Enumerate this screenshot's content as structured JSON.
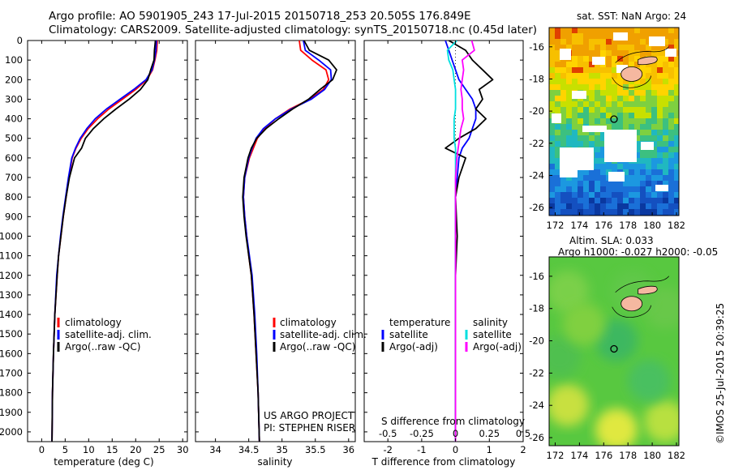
{
  "header": {
    "line1": "Argo profile: AO 5901905_243 17-Jul-2015 20150718_253 20.505S 176.849E",
    "line2": "Climatology: CARS2009. Satellite-adjusted climatology: synTS_20150718.nc (0.45d later)"
  },
  "depth_ticks": [
    "0",
    "100",
    "200",
    "300",
    "400",
    "500",
    "600",
    "700",
    "800",
    "900",
    "1000",
    "1100",
    "1200",
    "1300",
    "1400",
    "1500",
    "1600",
    "1700",
    "1800",
    "1900",
    "2000"
  ],
  "colors": {
    "climatology": "#ff0000",
    "satellite": "#0000ff",
    "argo": "#000000",
    "sat_salinity": "#00e0e0",
    "argo_salinity": "#ff00ff",
    "land": "#f5b8a0"
  },
  "chart_data": [
    {
      "type": "line",
      "xlabel": "temperature (deg C)",
      "xticks": [
        "0",
        "5",
        "10",
        "15",
        "20",
        "25",
        "30"
      ],
      "xlim": [
        -3,
        31
      ],
      "ylim": [
        2050,
        0
      ],
      "legend": {
        "placement": "lower-center",
        "entries": [
          "climatology",
          "satellite-adj. clim.",
          "Argo(..raw -QC)"
        ]
      },
      "series": [
        {
          "name": "climatology",
          "color": "#ff0000",
          "x": [
            24.6,
            24.5,
            24.1,
            23.6,
            22.4,
            20.0,
            17.2,
            14.3,
            11.9,
            9.9,
            8.4,
            7.3,
            6.5,
            5.8,
            5.2,
            4.6,
            4.1,
            3.6,
            3.3,
            2.8,
            2.5,
            2.3,
            2.2
          ],
          "y": [
            0,
            50,
            100,
            150,
            200,
            250,
            300,
            350,
            400,
            450,
            500,
            550,
            600,
            700,
            800,
            900,
            1000,
            1100,
            1200,
            1400,
            1600,
            1800,
            2050
          ]
        },
        {
          "name": "satellite-adj. clim.",
          "color": "#0000ff",
          "x": [
            24.4,
            24.3,
            24.0,
            23.5,
            22.2,
            19.6,
            16.7,
            13.8,
            11.4,
            9.6,
            8.2,
            7.2,
            6.4,
            5.7,
            5.1,
            4.5,
            4.0,
            3.6,
            3.2,
            2.8,
            2.5,
            2.3,
            2.2
          ],
          "y": [
            0,
            50,
            100,
            150,
            200,
            250,
            300,
            350,
            400,
            450,
            500,
            550,
            600,
            700,
            800,
            900,
            1000,
            1100,
            1200,
            1400,
            1600,
            1800,
            2050
          ]
        },
        {
          "name": "Argo(..raw -QC)",
          "color": "#000000",
          "x": [
            24.2,
            24.0,
            23.9,
            23.2,
            22.6,
            21.0,
            18.6,
            15.8,
            13.2,
            11.0,
            9.3,
            8.5,
            7.0,
            5.9,
            5.2,
            4.6,
            4.1,
            3.6,
            3.3,
            2.8,
            2.5,
            2.3,
            2.2
          ],
          "y": [
            0,
            50,
            100,
            150,
            200,
            250,
            300,
            350,
            400,
            450,
            500,
            550,
            600,
            700,
            800,
            900,
            1000,
            1100,
            1200,
            1400,
            1600,
            1800,
            2050
          ]
        }
      ]
    },
    {
      "type": "line",
      "xlabel": "salinity",
      "xticks": [
        "34",
        "34.5",
        "35",
        "35.5",
        "36"
      ],
      "xlim": [
        33.7,
        36.1
      ],
      "ylim": [
        2050,
        0
      ],
      "legend": {
        "placement": "lower-center",
        "entries": [
          "climatology",
          "satellite-adj. clim.",
          "Argo(..raw -QC)"
        ]
      },
      "annotations": [
        "US ARGO PROJECT",
        "PI: STEPHEN RISER"
      ],
      "series": [
        {
          "name": "climatology",
          "color": "#ff0000",
          "x": [
            35.26,
            35.28,
            35.45,
            35.66,
            35.7,
            35.62,
            35.42,
            35.12,
            34.9,
            34.74,
            34.63,
            34.57,
            34.51,
            34.44,
            34.42,
            34.44,
            34.47,
            34.5,
            34.54,
            34.58,
            34.61,
            34.64,
            34.66
          ],
          "y": [
            0,
            50,
            100,
            150,
            200,
            250,
            300,
            350,
            400,
            450,
            500,
            550,
            600,
            700,
            800,
            900,
            1000,
            1100,
            1200,
            1400,
            1600,
            1800,
            2050
          ]
        },
        {
          "name": "satellite-adj. clim.",
          "color": "#0000ff",
          "x": [
            35.32,
            35.35,
            35.55,
            35.73,
            35.74,
            35.64,
            35.44,
            35.14,
            34.9,
            34.72,
            34.61,
            34.55,
            34.5,
            34.44,
            34.42,
            34.44,
            34.47,
            34.51,
            34.55,
            34.59,
            34.62,
            34.64,
            34.66
          ],
          "y": [
            0,
            50,
            100,
            150,
            200,
            250,
            300,
            350,
            400,
            450,
            500,
            550,
            600,
            700,
            800,
            900,
            1000,
            1100,
            1200,
            1400,
            1600,
            1800,
            2050
          ]
        },
        {
          "name": "Argo(..raw -QC)",
          "color": "#000000",
          "x": [
            35.33,
            35.41,
            35.7,
            35.82,
            35.76,
            35.57,
            35.4,
            35.16,
            34.95,
            34.76,
            34.62,
            34.54,
            34.49,
            34.43,
            34.41,
            34.43,
            34.46,
            34.5,
            34.54,
            34.58,
            34.61,
            34.64,
            34.66
          ],
          "y": [
            0,
            50,
            100,
            150,
            200,
            250,
            300,
            350,
            400,
            450,
            500,
            550,
            600,
            700,
            800,
            900,
            1000,
            1100,
            1200,
            1400,
            1600,
            1800,
            2050
          ]
        }
      ]
    },
    {
      "type": "line",
      "xlabel": "T difference from climatology",
      "title": "S difference from climatology",
      "xticks": [
        "-2",
        "-1",
        "0",
        "1",
        "2"
      ],
      "sticks": [
        "-0.5",
        "-0.25",
        "0",
        "0.25",
        "0.5"
      ],
      "xlim": [
        -2.7,
        2.0
      ],
      "ylim": [
        2050,
        0
      ],
      "legend": {
        "placement": "lower-center",
        "entries": [
          "temperature",
          "satellite",
          "Argo(-adj)",
          "salinity",
          "satellite",
          "Argo(-adj)"
        ]
      },
      "series": [
        {
          "name": "satellite",
          "color": "#0000ff",
          "x": [
            -0.3,
            -0.2,
            -0.1,
            0.0,
            0.1,
            0.3,
            0.5,
            0.6,
            0.6,
            0.5,
            0.4,
            0.2,
            0.1,
            0.05,
            0.0,
            0.0,
            0.0,
            0.0,
            0.0,
            0.0,
            0.0
          ],
          "y": [
            0,
            50,
            100,
            150,
            200,
            250,
            300,
            350,
            400,
            450,
            500,
            550,
            600,
            700,
            800,
            1000,
            1200,
            1400,
            1600,
            1800,
            2050
          ]
        },
        {
          "name": "Argo(-adj)",
          "color": "#000000",
          "x": [
            -0.2,
            0.3,
            0.5,
            0.8,
            1.1,
            0.7,
            0.8,
            0.6,
            0.9,
            0.6,
            0.1,
            -0.3,
            0.3,
            0.1,
            0.0,
            0.05,
            0.0,
            0.0,
            0.0,
            0.0,
            0.0
          ],
          "y": [
            0,
            50,
            100,
            150,
            200,
            250,
            300,
            350,
            400,
            450,
            500,
            550,
            600,
            700,
            800,
            1000,
            1200,
            1400,
            1600,
            1800,
            2050
          ]
        },
        {
          "name": "satellite",
          "color": "#00e0e0",
          "x": [
            0.01,
            -0.06,
            -0.05,
            -0.02,
            -0.01,
            0.0,
            0.0,
            0.0,
            -0.01,
            -0.01,
            -0.01,
            0.0,
            0.0,
            0.0,
            0.0,
            0.0,
            0.0,
            0.0,
            0.0,
            0.0,
            0.0
          ],
          "y": [
            0,
            50,
            100,
            150,
            200,
            250,
            300,
            350,
            400,
            450,
            500,
            550,
            600,
            700,
            800,
            1000,
            1200,
            1400,
            1600,
            1800,
            2050
          ]
        },
        {
          "name": "Argo(-adj)",
          "color": "#ff00ff",
          "x": [
            0.12,
            0.14,
            0.05,
            0.06,
            0.05,
            0.04,
            0.05,
            0.05,
            0.06,
            0.04,
            0.03,
            0.02,
            0.01,
            0.0,
            0.0,
            0.0,
            0.0,
            0.0,
            0.0,
            0.0,
            0.0
          ],
          "y": [
            0,
            50,
            100,
            150,
            200,
            250,
            300,
            350,
            400,
            450,
            500,
            550,
            600,
            700,
            800,
            1000,
            1200,
            1400,
            1600,
            1800,
            2050
          ]
        }
      ]
    },
    {
      "type": "heatmap",
      "title": "sat. SST: NaN Argo: 24",
      "xticks": [
        "172",
        "174",
        "176",
        "178",
        "180",
        "182"
      ],
      "yticks": [
        "-16",
        "-18",
        "-20",
        "-22",
        "-24",
        "-26"
      ],
      "xlim": [
        171.5,
        182.2
      ],
      "ylim": [
        -26.5,
        -14.8
      ],
      "argo_position": [
        176.85,
        -20.5
      ]
    },
    {
      "type": "heatmap",
      "title": "Altim. SLA: 0.033",
      "subtitle": "Argo h1000: -0.027 h2000: -0.05",
      "xticks": [
        "172",
        "174",
        "176",
        "178",
        "180",
        "182"
      ],
      "yticks": [
        "-16",
        "-18",
        "-20",
        "-22",
        "-24",
        "-26"
      ],
      "xlim": [
        171.5,
        182.2
      ],
      "ylim": [
        -26.5,
        -14.8
      ],
      "argo_position": [
        176.85,
        -20.5
      ]
    }
  ],
  "footer": {
    "stamp": "©IMOS 25-Jul-2015 20:39:25"
  }
}
